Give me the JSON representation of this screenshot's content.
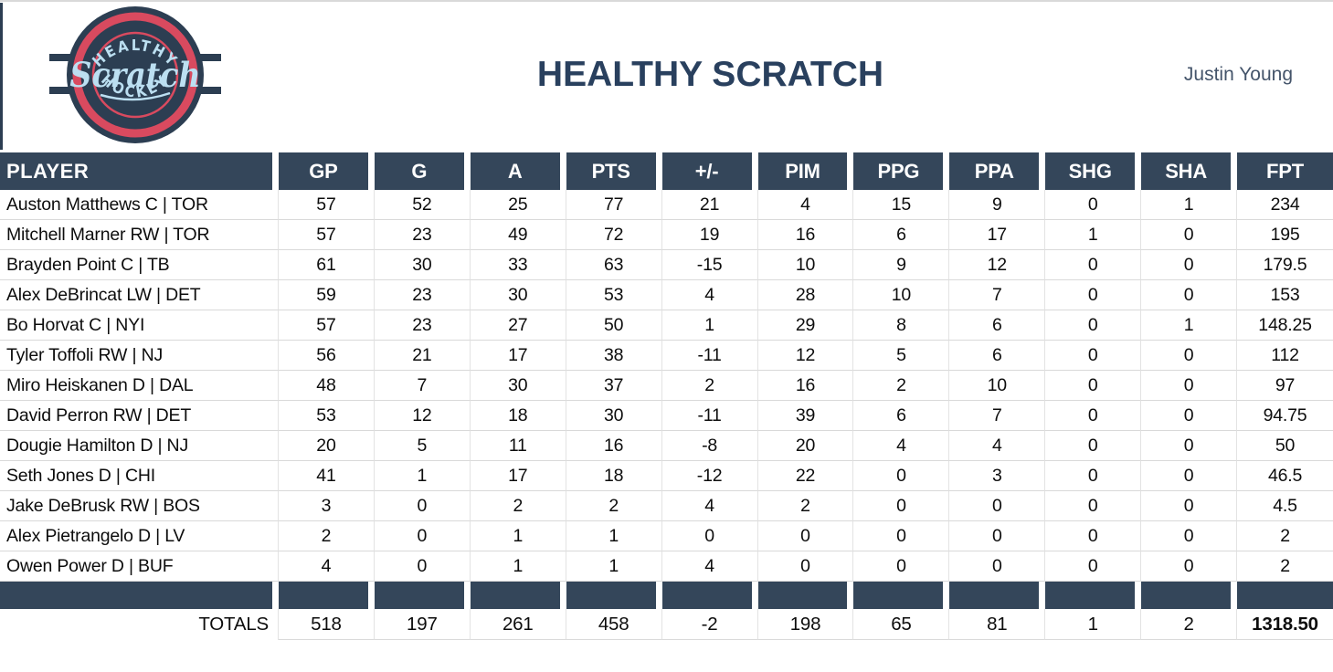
{
  "page": {
    "title": "HEALTHY SCRATCH",
    "owner": "Justin Young"
  },
  "logo": {
    "arc_top": "HEALTHY",
    "script": "Scratch",
    "arc_bottom": "HOCKEY"
  },
  "colors": {
    "header_bg": "#34465A",
    "logo_navy": "#2C3E52",
    "logo_red": "#D94A5F",
    "logo_blue": "#BCDFF1",
    "title_text": "#29405E",
    "owner_text": "#44546A",
    "grid_line": "#D9D9D9"
  },
  "table": {
    "columns": [
      "PLAYER",
      "GP",
      "G",
      "A",
      "PTS",
      "+/-",
      "PIM",
      "PPG",
      "PPA",
      "SHG",
      "SHA",
      "FPT"
    ],
    "rows": [
      {
        "player": "Auston Matthews C | TOR",
        "values": [
          57,
          52,
          25,
          77,
          21,
          4,
          15,
          9,
          0,
          1,
          "234"
        ]
      },
      {
        "player": "Mitchell Marner RW | TOR",
        "values": [
          57,
          23,
          49,
          72,
          19,
          16,
          6,
          17,
          1,
          0,
          "195"
        ]
      },
      {
        "player": "Brayden Point C | TB",
        "values": [
          61,
          30,
          33,
          63,
          -15,
          10,
          9,
          12,
          0,
          0,
          "179.5"
        ]
      },
      {
        "player": "Alex DeBrincat LW | DET",
        "values": [
          59,
          23,
          30,
          53,
          4,
          28,
          10,
          7,
          0,
          0,
          "153"
        ]
      },
      {
        "player": "Bo Horvat C | NYI",
        "values": [
          57,
          23,
          27,
          50,
          1,
          29,
          8,
          6,
          0,
          1,
          "148.25"
        ]
      },
      {
        "player": "Tyler Toffoli RW | NJ",
        "values": [
          56,
          21,
          17,
          38,
          -11,
          12,
          5,
          6,
          0,
          0,
          "112"
        ]
      },
      {
        "player": "Miro Heiskanen D | DAL",
        "values": [
          48,
          7,
          30,
          37,
          2,
          16,
          2,
          10,
          0,
          0,
          "97"
        ]
      },
      {
        "player": "David Perron RW | DET",
        "values": [
          53,
          12,
          18,
          30,
          -11,
          39,
          6,
          7,
          0,
          0,
          "94.75"
        ]
      },
      {
        "player": "Dougie Hamilton D | NJ",
        "values": [
          20,
          5,
          11,
          16,
          -8,
          20,
          4,
          4,
          0,
          0,
          "50"
        ]
      },
      {
        "player": "Seth Jones D | CHI",
        "values": [
          41,
          1,
          17,
          18,
          -12,
          22,
          0,
          3,
          0,
          0,
          "46.5"
        ]
      },
      {
        "player": "Jake DeBrusk RW | BOS",
        "values": [
          3,
          0,
          2,
          2,
          4,
          2,
          0,
          0,
          0,
          0,
          "4.5"
        ]
      },
      {
        "player": "Alex Pietrangelo D | LV",
        "values": [
          2,
          0,
          1,
          1,
          0,
          0,
          0,
          0,
          0,
          0,
          "2"
        ]
      },
      {
        "player": "Owen Power D | BUF",
        "values": [
          4,
          0,
          1,
          1,
          4,
          0,
          0,
          0,
          0,
          0,
          "2"
        ]
      }
    ],
    "totals": {
      "label": "TOTALS",
      "values": [
        518,
        197,
        261,
        458,
        -2,
        198,
        65,
        81,
        1,
        2,
        "1318.50"
      ]
    }
  }
}
